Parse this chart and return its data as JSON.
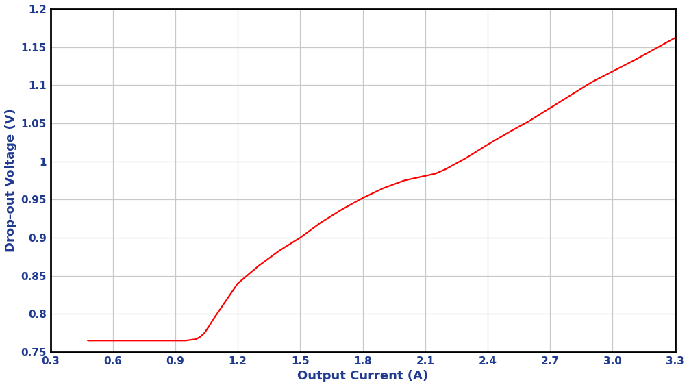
{
  "xlabel": "Output Current (A)",
  "ylabel": "Drop-out Voltage (V)",
  "xlim": [
    0.3,
    3.3
  ],
  "ylim": [
    0.75,
    1.2
  ],
  "xticks": [
    0.3,
    0.6,
    0.9,
    1.2,
    1.5,
    1.8,
    2.1,
    2.4,
    2.7,
    3.0,
    3.3
  ],
  "yticks": [
    0.75,
    0.8,
    0.85,
    0.9,
    0.95,
    1.0,
    1.05,
    1.1,
    1.15,
    1.2
  ],
  "xtick_labels": [
    "0.3",
    "0.6",
    "0.9",
    "1.2",
    "1.5",
    "1.8",
    "2.1",
    "2.4",
    "2.7",
    "3.0",
    "3.3"
  ],
  "ytick_labels": [
    "0.75",
    "0.8",
    "0.85",
    "0.9",
    "0.95",
    "1",
    "1.05",
    "1.1",
    "1.15",
    "1.2"
  ],
  "line_color": "#FF0000",
  "line_width": 1.6,
  "background_color": "#FFFFFF",
  "grid_color": "#C8C8C8",
  "tick_color": "#1F3A8F",
  "label_color": "#1F3A8F",
  "spine_color": "#000000",
  "curve_x": [
    0.48,
    0.55,
    0.6,
    0.65,
    0.7,
    0.75,
    0.8,
    0.85,
    0.9,
    0.95,
    1.0,
    1.02,
    1.04,
    1.06,
    1.08,
    1.1,
    1.15,
    1.2,
    1.3,
    1.4,
    1.5,
    1.6,
    1.7,
    1.8,
    1.9,
    2.0,
    2.1,
    2.15,
    2.2,
    2.3,
    2.4,
    2.5,
    2.6,
    2.7,
    2.8,
    2.9,
    3.0,
    3.1,
    3.2,
    3.3
  ],
  "curve_y": [
    0.765,
    0.765,
    0.765,
    0.765,
    0.765,
    0.765,
    0.765,
    0.765,
    0.765,
    0.765,
    0.767,
    0.77,
    0.775,
    0.783,
    0.792,
    0.8,
    0.82,
    0.84,
    0.863,
    0.883,
    0.9,
    0.92,
    0.937,
    0.952,
    0.965,
    0.975,
    0.981,
    0.984,
    0.99,
    1.005,
    1.022,
    1.038,
    1.053,
    1.07,
    1.087,
    1.104,
    1.118,
    1.132,
    1.147,
    1.162
  ],
  "figsize": [
    10.06,
    5.65
  ],
  "dpi": 100
}
